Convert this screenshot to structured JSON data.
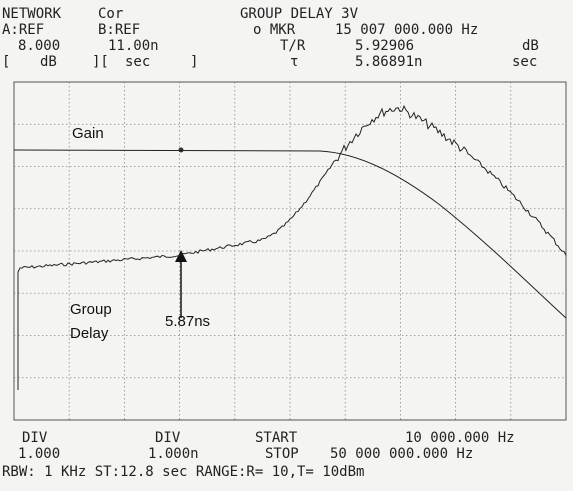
{
  "header": {
    "line1": [
      "NETWORK",
      "Cor",
      "GROUP DELAY 3V"
    ],
    "line2": [
      "A:REF",
      "B:REF",
      "o MKR",
      "15 007 000.000 Hz"
    ],
    "line3": [
      "8.000",
      "11.00n",
      "T/R",
      "5.92906",
      "dB"
    ],
    "line4": [
      "[",
      "dB",
      "][",
      "sec",
      "]",
      "τ",
      "5.86891n",
      "sec"
    ]
  },
  "annotations": {
    "gain": "Gain",
    "group": "Group",
    "delay": "Delay",
    "marker": "5.87ns"
  },
  "footer": {
    "line1": [
      "DIV",
      "DIV",
      "START",
      "10 000.000 Hz"
    ],
    "line2": [
      "1.000",
      "1.000n",
      "STOP",
      "50 000 000.000 Hz"
    ],
    "line3": "RBW:  1 KHz ST:12.8 sec RANGE:R= 10,T= 10dBm"
  }
}
